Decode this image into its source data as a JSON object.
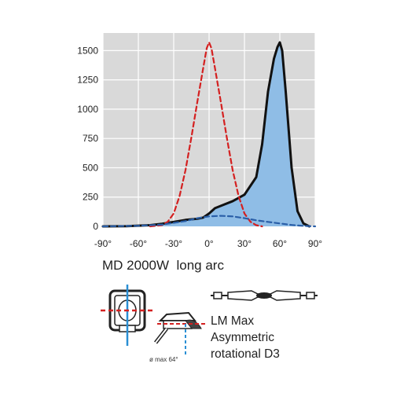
{
  "chart_data": {
    "type": "line",
    "title": "",
    "xlabel": "",
    "ylabel": "",
    "x_ticks": [
      "-90°",
      "-60°",
      "-30°",
      "0°",
      "30°",
      "60°",
      "90°"
    ],
    "y_ticks": [
      "0",
      "250",
      "500",
      "750",
      "1000",
      "1250",
      "1500"
    ],
    "xlim": [
      -90,
      90
    ],
    "ylim": [
      0,
      1650
    ],
    "grid": true,
    "series": [
      {
        "name": "",
        "style": "solid",
        "filled": true,
        "color": "#111111",
        "fill_color": "#8fbde6",
        "x": [
          -90,
          -70,
          -50,
          -40,
          -30,
          -20,
          -10,
          -5,
          0,
          5,
          10,
          20,
          30,
          40,
          45,
          50,
          55,
          58,
          60,
          62,
          65,
          70,
          75,
          80,
          85
        ],
        "y": [
          0,
          2,
          10,
          22,
          38,
          55,
          65,
          75,
          110,
          155,
          175,
          215,
          270,
          420,
          700,
          1150,
          1430,
          1530,
          1570,
          1500,
          1150,
          500,
          130,
          25,
          0
        ]
      },
      {
        "name": "",
        "style": "dashed",
        "filled": false,
        "color": "#d42020",
        "x": [
          -50,
          -40,
          -35,
          -30,
          -25,
          -20,
          -15,
          -10,
          -5,
          -2,
          0,
          2,
          5,
          10,
          15,
          20,
          25,
          30,
          35,
          40,
          45
        ],
        "y": [
          0,
          10,
          40,
          110,
          260,
          480,
          760,
          1060,
          1350,
          1520,
          1570,
          1520,
          1350,
          1060,
          760,
          480,
          260,
          110,
          40,
          10,
          0
        ]
      },
      {
        "name": "",
        "style": "dashed",
        "filled": false,
        "color": "#2a5fa8",
        "x": [
          -90,
          -60,
          -40,
          -20,
          -10,
          0,
          10,
          20,
          30,
          40,
          50,
          60,
          70,
          80,
          90
        ],
        "y": [
          0,
          5,
          15,
          45,
          70,
          85,
          90,
          85,
          70,
          52,
          38,
          25,
          12,
          4,
          0
        ]
      }
    ]
  },
  "caption": {
    "model": "MD 2000W  long arc",
    "lamp_lines": [
      "LM Max",
      "Asymmetric",
      "rotational D3"
    ],
    "diameter_note": "ø max 64°"
  },
  "colors": {
    "plot_background": "#d9d9d9",
    "grid": "#ffffff",
    "accent_red": "#d42020",
    "accent_blue": "#2a8fd4"
  }
}
